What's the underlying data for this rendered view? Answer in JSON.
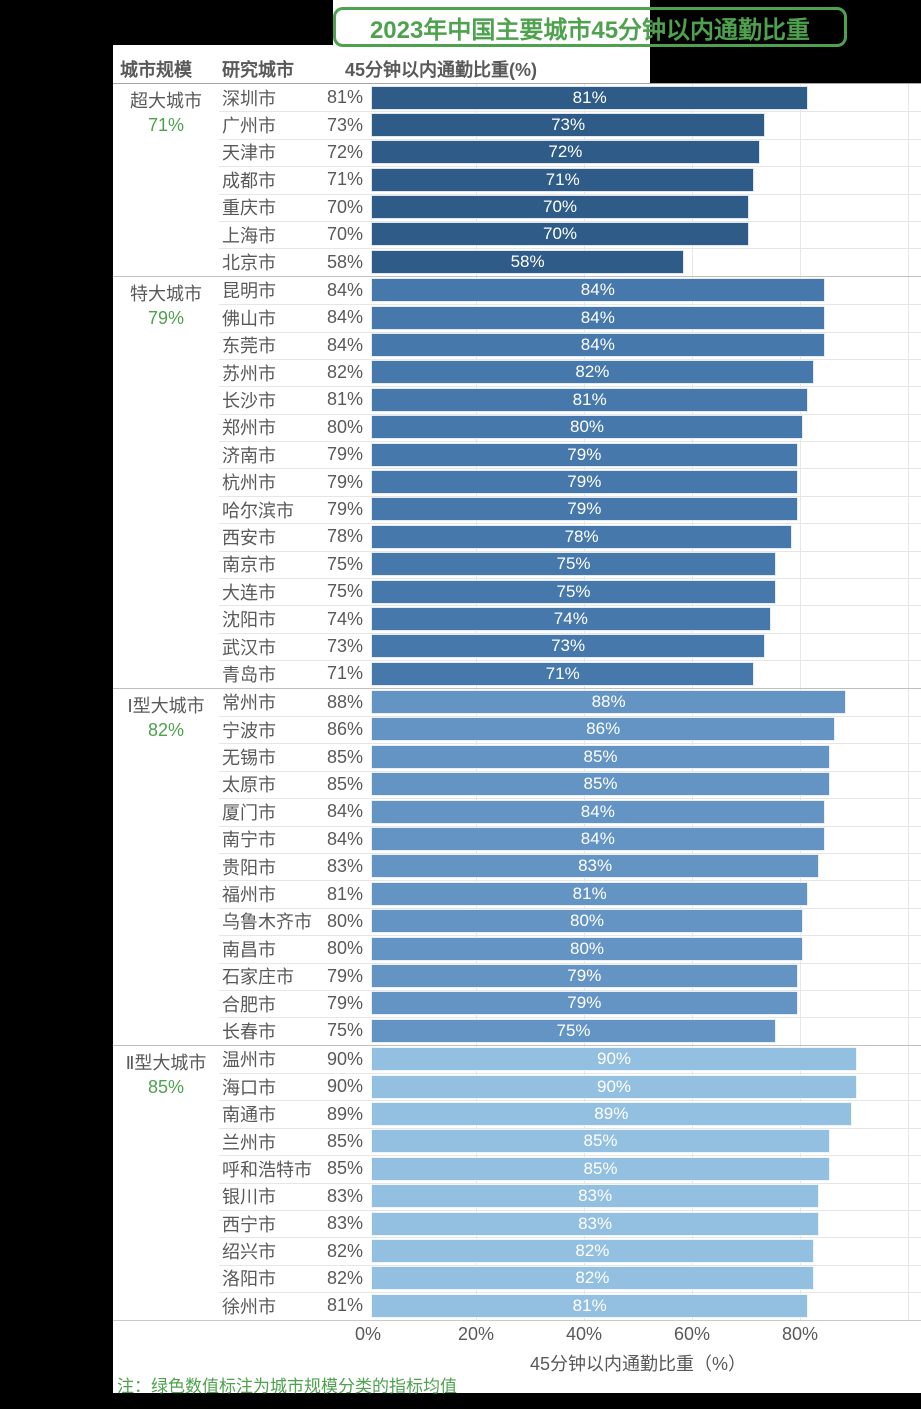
{
  "title": "2023年中国主要城市45分钟以内通勤比重",
  "columns": {
    "scale": "城市规模",
    "city": "研究城市",
    "value": "45分钟以内通勤比重(%)"
  },
  "axis": {
    "label": "45分钟以内通勤比重（%）",
    "tick_labels": [
      "0%",
      "20%",
      "40%",
      "60%",
      "80%"
    ]
  },
  "note": "注：绿色数值标注为城市规模分类的指标均值",
  "colors": {
    "accent_green": "#4EA24E",
    "text_gray": "#595959",
    "bar_group_1": "#2E5B87",
    "bar_group_2": "#4678AB",
    "bar_group_3": "#6494C4",
    "bar_group_4": "#93BFE0",
    "page_background": "#000000",
    "panel_background": "#FFFFFF"
  },
  "chart_data": {
    "type": "bar",
    "orientation": "horizontal",
    "unit": "%",
    "xlim": [
      0,
      100
    ],
    "x_ticks": [
      0,
      20,
      40,
      60,
      80
    ],
    "grid": true,
    "value_labels": "inside-center-white",
    "groups": [
      {
        "name": "超大城市",
        "mean": "71%",
        "color": "#2E5B87",
        "cities": [
          {
            "city": "深圳市",
            "value": 81
          },
          {
            "city": "广州市",
            "value": 73
          },
          {
            "city": "天津市",
            "value": 72
          },
          {
            "city": "成都市",
            "value": 71
          },
          {
            "city": "重庆市",
            "value": 70
          },
          {
            "city": "上海市",
            "value": 70
          },
          {
            "city": "北京市",
            "value": 58
          }
        ]
      },
      {
        "name": "特大城市",
        "mean": "79%",
        "color": "#4678AB",
        "cities": [
          {
            "city": "昆明市",
            "value": 84
          },
          {
            "city": "佛山市",
            "value": 84
          },
          {
            "city": "东莞市",
            "value": 84
          },
          {
            "city": "苏州市",
            "value": 82
          },
          {
            "city": "长沙市",
            "value": 81
          },
          {
            "city": "郑州市",
            "value": 80
          },
          {
            "city": "济南市",
            "value": 79
          },
          {
            "city": "杭州市",
            "value": 79
          },
          {
            "city": "哈尔滨市",
            "value": 79
          },
          {
            "city": "西安市",
            "value": 78
          },
          {
            "city": "南京市",
            "value": 75
          },
          {
            "city": "大连市",
            "value": 75
          },
          {
            "city": "沈阳市",
            "value": 74
          },
          {
            "city": "武汉市",
            "value": 73
          },
          {
            "city": "青岛市",
            "value": 71
          }
        ]
      },
      {
        "name": "Ⅰ型大城市",
        "mean": "82%",
        "color": "#6494C4",
        "cities": [
          {
            "city": "常州市",
            "value": 88
          },
          {
            "city": "宁波市",
            "value": 86
          },
          {
            "city": "无锡市",
            "value": 85
          },
          {
            "city": "太原市",
            "value": 85
          },
          {
            "city": "厦门市",
            "value": 84
          },
          {
            "city": "南宁市",
            "value": 84
          },
          {
            "city": "贵阳市",
            "value": 83
          },
          {
            "city": "福州市",
            "value": 81
          },
          {
            "city": "乌鲁木齐市",
            "value": 80
          },
          {
            "city": "南昌市",
            "value": 80
          },
          {
            "city": "石家庄市",
            "value": 79
          },
          {
            "city": "合肥市",
            "value": 79
          },
          {
            "city": "长春市",
            "value": 75
          }
        ]
      },
      {
        "name": "Ⅱ型大城市",
        "mean": "85%",
        "color": "#93BFE0",
        "cities": [
          {
            "city": "温州市",
            "value": 90
          },
          {
            "city": "海口市",
            "value": 90
          },
          {
            "city": "南通市",
            "value": 89
          },
          {
            "city": "兰州市",
            "value": 85
          },
          {
            "city": "呼和浩特市",
            "value": 85
          },
          {
            "city": "银川市",
            "value": 83
          },
          {
            "city": "西宁市",
            "value": 83
          },
          {
            "city": "绍兴市",
            "value": 82
          },
          {
            "city": "洛阳市",
            "value": 82
          },
          {
            "city": "徐州市",
            "value": 81
          }
        ]
      }
    ]
  }
}
